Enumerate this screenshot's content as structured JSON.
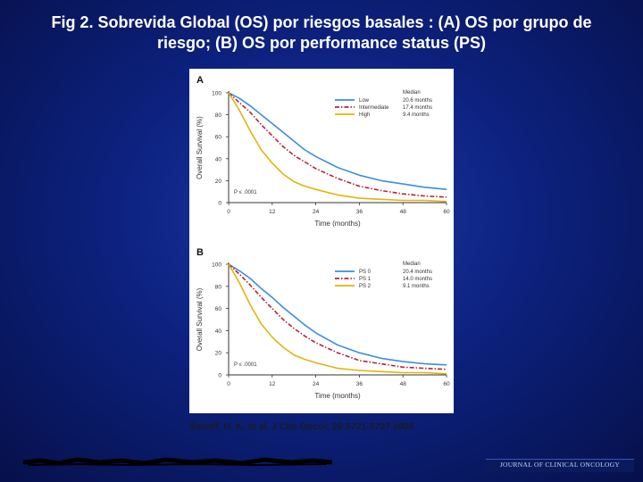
{
  "slide": {
    "title_line1": "Fig 2. Sobrevida Global (OS) por  riesgos basales : (A) OS por grupo de",
    "title_line2": "riesgo; (B) OS por performance status (PS)",
    "citation": "Sanoff, H. K. et al. J Clin Oncol; 26:5721-5727 2008",
    "journal": "JOURNAL OF CLINICAL ONCOLOGY"
  },
  "chart_data": [
    {
      "type": "line",
      "panel": "A",
      "xlabel": "Time (months)",
      "ylabel": "Overall Survival (%)",
      "xlim": [
        0,
        60
      ],
      "ylim": [
        0,
        100
      ],
      "xticks": [
        0,
        12,
        24,
        36,
        48,
        60
      ],
      "yticks": [
        0,
        20,
        40,
        60,
        80,
        100
      ],
      "legend_header": "Median",
      "annotation": "P ≤ .0001",
      "x": [
        0,
        3,
        6,
        9,
        12,
        15,
        18,
        21,
        24,
        30,
        36,
        42,
        48,
        54,
        60
      ],
      "series": [
        {
          "name": "Low",
          "median": "20.6 months",
          "color": "#3a8fe0",
          "dash": "",
          "values": [
            100,
            95,
            88,
            80,
            72,
            64,
            56,
            48,
            42,
            32,
            25,
            20,
            17,
            14,
            12
          ]
        },
        {
          "name": "Intermediate",
          "median": "17.4 months",
          "color": "#b52335",
          "dash": "5,2,1.5,2",
          "values": [
            100,
            91,
            82,
            71,
            61,
            51,
            43,
            37,
            31,
            22,
            15,
            11,
            8,
            6,
            5
          ]
        },
        {
          "name": "High",
          "median": "9.4 months",
          "color": "#e3b40a",
          "dash": "",
          "values": [
            100,
            84,
            65,
            48,
            36,
            26,
            19,
            15,
            12,
            7,
            4,
            3,
            2,
            2,
            1
          ]
        }
      ]
    },
    {
      "type": "line",
      "panel": "B",
      "xlabel": "Time (months)",
      "ylabel": "Overall Survival (%)",
      "xlim": [
        0,
        60
      ],
      "ylim": [
        0,
        100
      ],
      "xticks": [
        0,
        12,
        24,
        36,
        48,
        60
      ],
      "yticks": [
        0,
        20,
        40,
        60,
        80,
        100
      ],
      "legend_header": "Median",
      "annotation": "P ≤ .0001",
      "x": [
        0,
        3,
        6,
        9,
        12,
        15,
        18,
        21,
        24,
        30,
        36,
        42,
        48,
        54,
        60
      ],
      "series": [
        {
          "name": "PS 0",
          "median": "20.4 months",
          "color": "#3a8fe0",
          "dash": "",
          "values": [
            100,
            94,
            87,
            78,
            70,
            61,
            53,
            45,
            38,
            27,
            20,
            15,
            12,
            10,
            9
          ]
        },
        {
          "name": "PS 1",
          "median": "14.0 months",
          "color": "#b52335",
          "dash": "5,2,1.5,2",
          "values": [
            100,
            91,
            81,
            70,
            60,
            50,
            42,
            35,
            29,
            20,
            13,
            10,
            7,
            6,
            5
          ]
        },
        {
          "name": "PS 2",
          "median": "9.1 months",
          "color": "#e3b40a",
          "dash": "",
          "values": [
            100,
            83,
            63,
            46,
            34,
            25,
            18,
            14,
            11,
            6,
            4,
            3,
            2,
            2,
            1
          ]
        }
      ]
    }
  ]
}
